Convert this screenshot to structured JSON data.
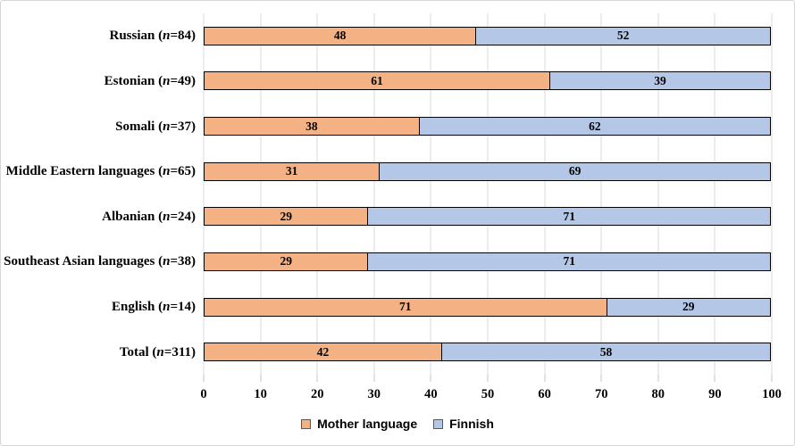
{
  "chart_data": {
    "type": "bar",
    "orientation": "horizontal",
    "stacked": true,
    "title": "",
    "xlabel": "",
    "ylabel": "",
    "xlim": [
      0,
      100
    ],
    "x_ticks": [
      0,
      10,
      20,
      30,
      40,
      50,
      60,
      70,
      80,
      90,
      100
    ],
    "grid": true,
    "legend_position": "bottom",
    "gridline_color": "#d9d9d9",
    "bar_border_color": "#000000",
    "categories": [
      "Russian",
      "Estonian",
      "Somali",
      "Middle Eastern languages",
      "Albanian",
      "Southeast Asian languages",
      "English",
      "Total"
    ],
    "n_values": [
      "84",
      "49",
      "37",
      "65",
      "24",
      "38",
      "14",
      "311"
    ],
    "series": [
      {
        "name": "Mother language",
        "color": "#f4b183",
        "values": [
          48,
          61,
          38,
          31,
          29,
          29,
          71,
          42
        ]
      },
      {
        "name": "Finnish",
        "color": "#b4c7e7",
        "values": [
          52,
          39,
          62,
          69,
          71,
          71,
          29,
          58
        ]
      }
    ]
  }
}
